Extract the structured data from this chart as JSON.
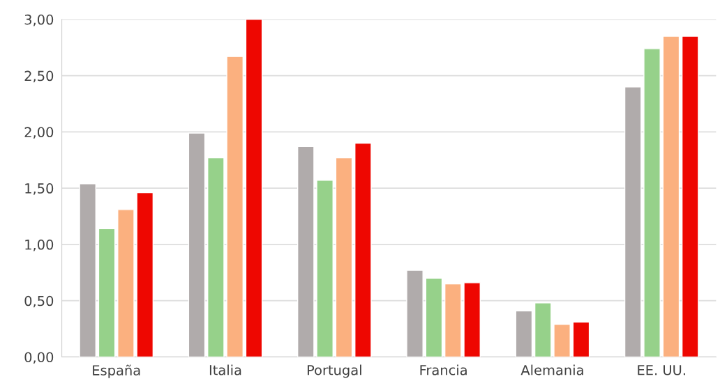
{
  "chart_data": {
    "type": "bar",
    "categories": [
      "España",
      "Italia",
      "Portugal",
      "Francia",
      "Alemania",
      "EE. UU."
    ],
    "series": [
      {
        "color": "#b0abab",
        "values": [
          1.54,
          1.99,
          1.87,
          0.77,
          0.41,
          2.4
        ]
      },
      {
        "color": "#96d18a",
        "values": [
          1.14,
          1.77,
          1.57,
          0.7,
          0.48,
          2.74
        ]
      },
      {
        "color": "#fbb07f",
        "values": [
          1.31,
          2.67,
          1.77,
          0.65,
          0.29,
          2.85
        ]
      },
      {
        "color": "#ee0701",
        "values": [
          1.46,
          3.0,
          1.9,
          0.66,
          0.31,
          2.85
        ]
      }
    ],
    "ylim": [
      0,
      3
    ],
    "yticks": [
      {
        "value": 0,
        "label": "0,00"
      },
      {
        "value": 0.5,
        "label": "0,50"
      },
      {
        "value": 1,
        "label": "1,00"
      },
      {
        "value": 1.5,
        "label": "1,50"
      },
      {
        "value": 2,
        "label": "2,00"
      },
      {
        "value": 2.5,
        "label": "2,50"
      },
      {
        "value": 3,
        "label": "3,00"
      }
    ],
    "grid": "y"
  }
}
